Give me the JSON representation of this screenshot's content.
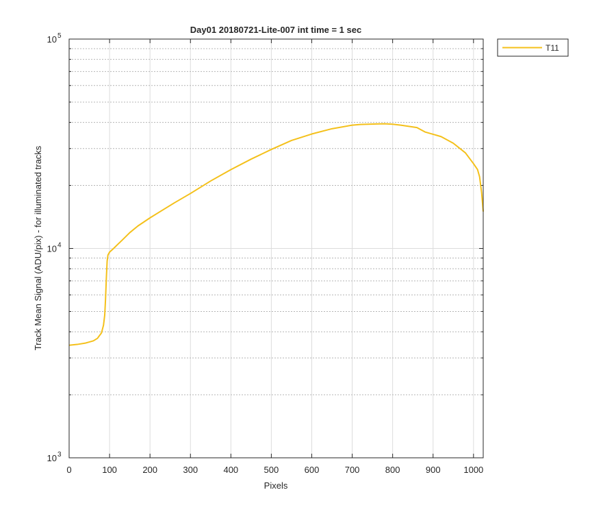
{
  "chart_data": {
    "type": "line",
    "title": "Day01 20180721-Lite-007 int time = 1 sec",
    "xlabel": "Pixels",
    "ylabel": "Track Mean Signal (ADU/pix) - for illuminated tracks",
    "xlim": [
      0,
      1024
    ],
    "ylim": [
      1000,
      100000
    ],
    "yscale": "log",
    "grid": true,
    "minor_grid": true,
    "legend_position": "outside-top-right",
    "x_ticks": [
      {
        "value": 0,
        "label": "0"
      },
      {
        "value": 100,
        "label": "100"
      },
      {
        "value": 200,
        "label": "200"
      },
      {
        "value": 300,
        "label": "300"
      },
      {
        "value": 400,
        "label": "400"
      },
      {
        "value": 500,
        "label": "500"
      },
      {
        "value": 600,
        "label": "600"
      },
      {
        "value": 700,
        "label": "700"
      },
      {
        "value": 800,
        "label": "800"
      },
      {
        "value": 900,
        "label": "900"
      },
      {
        "value": 1000,
        "label": "1000"
      }
    ],
    "y_ticks": [
      {
        "value": 1000,
        "base": "10",
        "exp": "3"
      },
      {
        "value": 10000,
        "base": "10",
        "exp": "4"
      },
      {
        "value": 100000,
        "base": "10",
        "exp": "5"
      }
    ],
    "series": [
      {
        "name": "T11",
        "color": "#f4c01a",
        "x": [
          0,
          20,
          40,
          60,
          70,
          80,
          85,
          88,
          90,
          92,
          94,
          96,
          100,
          110,
          120,
          130,
          150,
          170,
          200,
          230,
          260,
          300,
          350,
          400,
          450,
          500,
          550,
          600,
          650,
          700,
          720,
          760,
          780,
          800,
          820,
          860,
          880,
          900,
          920,
          950,
          980,
          1000,
          1010,
          1015,
          1020,
          1024
        ],
        "y": [
          3450,
          3480,
          3530,
          3620,
          3720,
          3950,
          4300,
          4800,
          5700,
          7200,
          8700,
          9300,
          9600,
          10000,
          10450,
          10900,
          11900,
          12800,
          14000,
          15200,
          16500,
          18300,
          21000,
          23800,
          26700,
          29700,
          32800,
          35200,
          37300,
          38800,
          39100,
          39300,
          39400,
          39200,
          38800,
          37800,
          36000,
          35100,
          34200,
          31800,
          28600,
          25400,
          23800,
          22000,
          18500,
          15000
        ]
      }
    ]
  }
}
